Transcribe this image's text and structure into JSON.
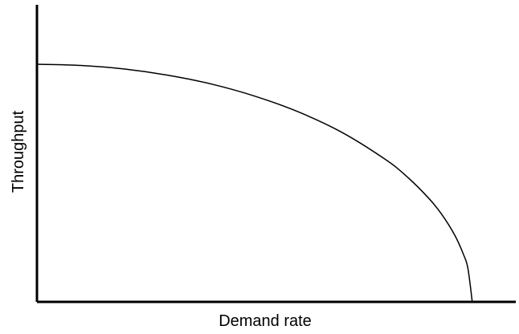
{
  "chart_data": {
    "type": "line",
    "xlabel": "Demand rate",
    "ylabel": "Throughput",
    "xlim": [
      0,
      1.1
    ],
    "ylim": [
      0,
      1.25
    ],
    "grid": false,
    "legend": "none",
    "ticks": false,
    "series": [
      {
        "x": [
          0,
          0.1,
          0.2,
          0.3,
          0.4,
          0.5,
          0.6,
          0.7,
          0.8,
          0.85,
          0.9,
          0.93,
          0.96,
          0.98,
          0.99,
          1.0
        ],
        "y": [
          1.0,
          0.995,
          0.98,
          0.954,
          0.917,
          0.866,
          0.8,
          0.714,
          0.6,
          0.527,
          0.436,
          0.368,
          0.28,
          0.199,
          0.141,
          0.0
        ]
      }
    ]
  },
  "colors": {
    "line": "#000000",
    "axis": "#000000",
    "background": "#ffffff"
  }
}
